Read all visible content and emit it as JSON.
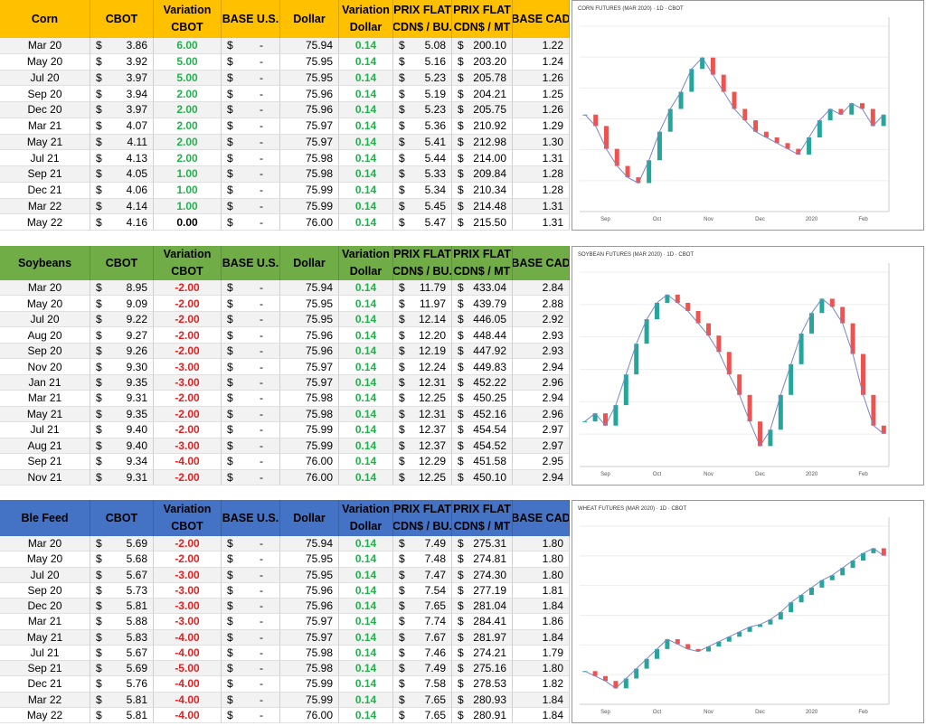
{
  "currency": "$",
  "tables": [
    {
      "header": [
        [
          "Corn"
        ],
        [
          "CBOT"
        ],
        [
          "Variation",
          "CBOT"
        ],
        [
          "BASE U.S."
        ],
        [
          "Dollar"
        ],
        [
          "Variation",
          "Dollar"
        ],
        [
          "PRIX FLAT",
          "CDN$ / BU."
        ],
        [
          "PRIX FLAT",
          "CDN$ / MT"
        ],
        [
          "BASE CAD"
        ]
      ],
      "color": "#ffc000",
      "rows": [
        [
          "Mar 20",
          "3.86",
          "6.00",
          "-",
          "75.94",
          "0.14",
          "5.08",
          "200.10",
          "1.22"
        ],
        [
          "May 20",
          "3.92",
          "5.00",
          "-",
          "75.95",
          "0.14",
          "5.16",
          "203.20",
          "1.24"
        ],
        [
          "Jul 20",
          "3.97",
          "5.00",
          "-",
          "75.95",
          "0.14",
          "5.23",
          "205.78",
          "1.26"
        ],
        [
          "Sep 20",
          "3.94",
          "2.00",
          "-",
          "75.96",
          "0.14",
          "5.19",
          "204.21",
          "1.25"
        ],
        [
          "Dec 20",
          "3.97",
          "2.00",
          "-",
          "75.96",
          "0.14",
          "5.23",
          "205.75",
          "1.26"
        ],
        [
          "Mar 21",
          "4.07",
          "2.00",
          "-",
          "75.97",
          "0.14",
          "5.36",
          "210.92",
          "1.29"
        ],
        [
          "May 21",
          "4.11",
          "2.00",
          "-",
          "75.97",
          "0.14",
          "5.41",
          "212.98",
          "1.30"
        ],
        [
          "Jul 21",
          "4.13",
          "2.00",
          "-",
          "75.98",
          "0.14",
          "5.44",
          "214.00",
          "1.31"
        ],
        [
          "Sep 21",
          "4.05",
          "1.00",
          "-",
          "75.98",
          "0.14",
          "5.33",
          "209.84",
          "1.28"
        ],
        [
          "Dec 21",
          "4.06",
          "1.00",
          "-",
          "75.99",
          "0.14",
          "5.34",
          "210.34",
          "1.28"
        ],
        [
          "Mar 22",
          "4.14",
          "1.00",
          "-",
          "75.99",
          "0.14",
          "5.45",
          "214.48",
          "1.31"
        ],
        [
          "May 22",
          "4.16",
          "0.00",
          "-",
          "76.00",
          "0.14",
          "5.47",
          "215.50",
          "1.31"
        ]
      ],
      "chart": {
        "title": "CORN FUTURES (MAR 2020) · 1D · CBOT",
        "x_labels": [
          "Sep",
          "Oct",
          "Nov",
          "Dec",
          "2020",
          "Feb"
        ],
        "ylim": [
          350,
          415
        ],
        "values": [
          384,
          380,
          372,
          366,
          362,
          360,
          368,
          378,
          386,
          392,
          400,
          404,
          398,
          392,
          386,
          382,
          378,
          376,
          374,
          372,
          370,
          376,
          382,
          386,
          384,
          388,
          386,
          380,
          384
        ]
      }
    },
    {
      "header": [
        [
          "Soybeans"
        ],
        [
          "CBOT"
        ],
        [
          "Variation",
          "CBOT"
        ],
        [
          "BASE U.S."
        ],
        [
          "Dollar"
        ],
        [
          "Variation",
          "Dollar"
        ],
        [
          "PRIX FLAT",
          "CDN$ / BU."
        ],
        [
          "PRIX FLAT",
          "CDN$ / MT"
        ],
        [
          "BASE CAD"
        ]
      ],
      "color": "#70ad47",
      "rows": [
        [
          "Mar 20",
          "8.95",
          "-2.00",
          "-",
          "75.94",
          "0.14",
          "11.79",
          "433.04",
          "2.84"
        ],
        [
          "May 20",
          "9.09",
          "-2.00",
          "-",
          "75.95",
          "0.14",
          "11.97",
          "439.79",
          "2.88"
        ],
        [
          "Jul 20",
          "9.22",
          "-2.00",
          "-",
          "75.95",
          "0.14",
          "12.14",
          "446.05",
          "2.92"
        ],
        [
          "Aug 20",
          "9.27",
          "-2.00",
          "-",
          "75.96",
          "0.14",
          "12.20",
          "448.44",
          "2.93"
        ],
        [
          "Sep 20",
          "9.26",
          "-2.00",
          "-",
          "75.96",
          "0.14",
          "12.19",
          "447.92",
          "2.93"
        ],
        [
          "Nov 20",
          "9.30",
          "-3.00",
          "-",
          "75.97",
          "0.14",
          "12.24",
          "449.83",
          "2.94"
        ],
        [
          "Jan 21",
          "9.35",
          "-3.00",
          "-",
          "75.97",
          "0.14",
          "12.31",
          "452.22",
          "2.96"
        ],
        [
          "Mar 21",
          "9.31",
          "-2.00",
          "-",
          "75.98",
          "0.14",
          "12.25",
          "450.25",
          "2.94"
        ],
        [
          "May 21",
          "9.35",
          "-2.00",
          "-",
          "75.98",
          "0.14",
          "12.31",
          "452.16",
          "2.96"
        ],
        [
          "Jul 21",
          "9.40",
          "-2.00",
          "-",
          "75.99",
          "0.14",
          "12.37",
          "454.54",
          "2.97"
        ],
        [
          "Aug 21",
          "9.40",
          "-3.00",
          "-",
          "75.99",
          "0.14",
          "12.37",
          "454.52",
          "2.97"
        ],
        [
          "Sep 21",
          "9.34",
          "-4.00",
          "-",
          "76.00",
          "0.14",
          "12.29",
          "451.58",
          "2.95"
        ],
        [
          "Nov 21",
          "9.31",
          "-2.00",
          "-",
          "76.00",
          "0.14",
          "12.25",
          "450.10",
          "2.94"
        ]
      ],
      "chart": {
        "title": "SOYBEAN FUTURES (MAR 2020) · 1D · CBOT",
        "x_labels": [
          "Sep",
          "Oct",
          "Nov",
          "Dec",
          "2020",
          "Feb"
        ],
        "ylim": [
          870,
          965
        ],
        "values": [
          892,
          896,
          890,
          900,
          915,
          930,
          942,
          950,
          954,
          950,
          946,
          940,
          934,
          926,
          915,
          905,
          892,
          880,
          888,
          905,
          920,
          935,
          945,
          952,
          948,
          940,
          925,
          905,
          890,
          886
        ]
      }
    },
    {
      "header": [
        [
          "Ble Feed"
        ],
        [
          "CBOT"
        ],
        [
          "Variation",
          "CBOT"
        ],
        [
          "BASE U.S."
        ],
        [
          "Dollar"
        ],
        [
          "Variation",
          "Dollar"
        ],
        [
          "PRIX FLAT",
          "CDN$ / BU."
        ],
        [
          "PRIX FLAT",
          "CDN$ / MT"
        ],
        [
          "BASE CAD"
        ]
      ],
      "color": "#4472c4",
      "rows": [
        [
          "Mar 20",
          "5.69",
          "-2.00",
          "-",
          "75.94",
          "0.14",
          "7.49",
          "275.31",
          "1.80"
        ],
        [
          "May 20",
          "5.68",
          "-2.00",
          "-",
          "75.95",
          "0.14",
          "7.48",
          "274.81",
          "1.80"
        ],
        [
          "Jul 20",
          "5.67",
          "-3.00",
          "-",
          "75.95",
          "0.14",
          "7.47",
          "274.30",
          "1.80"
        ],
        [
          "Sep 20",
          "5.73",
          "-3.00",
          "-",
          "75.96",
          "0.14",
          "7.54",
          "277.19",
          "1.81"
        ],
        [
          "Dec 20",
          "5.81",
          "-3.00",
          "-",
          "75.96",
          "0.14",
          "7.65",
          "281.04",
          "1.84"
        ],
        [
          "Mar 21",
          "5.88",
          "-3.00",
          "-",
          "75.97",
          "0.14",
          "7.74",
          "284.41",
          "1.86"
        ],
        [
          "May 21",
          "5.83",
          "-4.00",
          "-",
          "75.97",
          "0.14",
          "7.67",
          "281.97",
          "1.84"
        ],
        [
          "Jul 21",
          "5.67",
          "-4.00",
          "-",
          "75.98",
          "0.14",
          "7.46",
          "274.21",
          "1.79"
        ],
        [
          "Sep 21",
          "5.69",
          "-5.00",
          "-",
          "75.98",
          "0.14",
          "7.49",
          "275.16",
          "1.80"
        ],
        [
          "Dec 21",
          "5.76",
          "-4.00",
          "-",
          "75.99",
          "0.14",
          "7.58",
          "278.53",
          "1.82"
        ],
        [
          "Mar 22",
          "5.81",
          "-4.00",
          "-",
          "75.99",
          "0.14",
          "7.65",
          "280.93",
          "1.84"
        ],
        [
          "May 22",
          "5.81",
          "-4.00",
          "-",
          "76.00",
          "0.14",
          "7.65",
          "280.91",
          "1.84"
        ]
      ],
      "chart": {
        "title": "WHEAT FUTURES (MAR 2020) · 1D · CBOT",
        "x_labels": [
          "Sep",
          "Oct",
          "Nov",
          "Dec",
          "2020",
          "Feb"
        ],
        "ylim": [
          455,
          600
        ],
        "values": [
          482,
          478,
          474,
          468,
          476,
          484,
          492,
          500,
          508,
          504,
          500,
          498,
          502,
          506,
          510,
          514,
          518,
          520,
          524,
          530,
          538,
          544,
          550,
          556,
          560,
          566,
          572,
          578,
          582,
          576
        ]
      }
    }
  ]
}
